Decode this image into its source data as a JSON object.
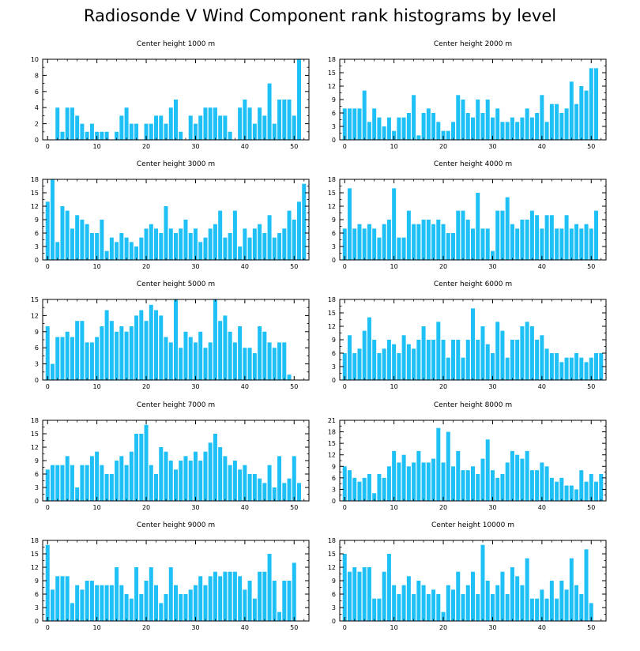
{
  "title": "Radiosonde V Wind Component rank histograms by level",
  "colors": {
    "bar": "#1EC0F5",
    "axis": "#000000"
  },
  "chart_data": [
    {
      "type": "bar",
      "title": "Center height 1000 m",
      "xlim": [
        -1,
        53
      ],
      "ylim": [
        0,
        10
      ],
      "xticks": [
        0,
        10,
        20,
        30,
        40,
        50
      ],
      "yticks": [
        0,
        2,
        4,
        6,
        8,
        10
      ],
      "values": [
        0,
        0,
        4,
        1,
        4,
        4,
        3,
        2,
        1,
        2,
        1,
        1,
        1,
        0,
        1,
        3,
        4,
        2,
        2,
        0,
        2,
        2,
        3,
        3,
        2,
        4,
        5,
        1,
        0,
        3,
        2,
        3,
        4,
        4,
        4,
        3,
        3,
        1,
        0,
        4,
        5,
        4,
        2,
        4,
        3,
        7,
        2,
        5,
        5,
        5,
        3,
        10
      ]
    },
    {
      "type": "bar",
      "title": "Center height 2000 m",
      "xlim": [
        -1,
        53
      ],
      "ylim": [
        0,
        18
      ],
      "xticks": [
        0,
        10,
        20,
        30,
        40,
        50
      ],
      "yticks": [
        0,
        3,
        6,
        9,
        12,
        15,
        18
      ],
      "values": [
        7,
        7,
        7,
        7,
        11,
        4,
        7,
        5,
        3,
        5,
        2,
        5,
        5,
        6,
        10,
        1,
        6,
        7,
        6,
        4,
        2,
        2,
        4,
        10,
        9,
        6,
        5,
        9,
        6,
        9,
        5,
        7,
        4,
        4,
        5,
        4,
        5,
        7,
        5,
        6,
        10,
        4,
        8,
        8,
        6,
        7,
        13,
        8,
        12,
        11,
        16,
        16
      ]
    },
    {
      "type": "bar",
      "title": "Center height 3000 m",
      "xlim": [
        -1,
        53
      ],
      "ylim": [
        0,
        18
      ],
      "xticks": [
        0,
        10,
        20,
        30,
        40,
        50
      ],
      "yticks": [
        0,
        3,
        6,
        9,
        12,
        15,
        18
      ],
      "values": [
        13,
        18,
        4,
        12,
        11,
        7,
        10,
        9,
        8,
        6,
        6,
        9,
        2,
        5,
        4,
        6,
        5,
        4,
        3,
        5,
        7,
        8,
        7,
        6,
        12,
        7,
        6,
        7,
        9,
        6,
        7,
        4,
        5,
        7,
        8,
        11,
        5,
        6,
        11,
        3,
        7,
        5,
        7,
        8,
        6,
        10,
        5,
        6,
        7,
        11,
        9,
        13,
        17
      ]
    },
    {
      "type": "bar",
      "title": "Center height 4000 m",
      "xlim": [
        -1,
        53
      ],
      "ylim": [
        0,
        18
      ],
      "xticks": [
        0,
        10,
        20,
        30,
        40,
        50
      ],
      "yticks": [
        0,
        3,
        6,
        9,
        12,
        15,
        18
      ],
      "values": [
        7,
        16,
        7,
        8,
        7,
        8,
        7,
        5,
        8,
        9,
        16,
        5,
        5,
        11,
        8,
        8,
        9,
        9,
        8,
        9,
        8,
        6,
        6,
        11,
        11,
        9,
        7,
        15,
        7,
        7,
        2,
        11,
        11,
        14,
        8,
        7,
        9,
        9,
        11,
        10,
        7,
        10,
        10,
        7,
        7,
        10,
        7,
        8,
        7,
        8,
        7,
        11
      ]
    },
    {
      "type": "bar",
      "title": "Center height 5000 m",
      "xlim": [
        -1,
        53
      ],
      "ylim": [
        0,
        15
      ],
      "xticks": [
        0,
        10,
        20,
        30,
        40,
        50
      ],
      "yticks": [
        0,
        3,
        6,
        9,
        12,
        15
      ],
      "values": [
        10,
        3,
        8,
        8,
        9,
        8,
        11,
        11,
        7,
        7,
        8,
        10,
        13,
        11,
        9,
        10,
        9,
        10,
        12,
        13,
        11,
        14,
        13,
        12,
        8,
        7,
        15,
        6,
        9,
        8,
        7,
        9,
        6,
        7,
        15,
        11,
        12,
        9,
        7,
        10,
        6,
        6,
        5,
        10,
        9,
        7,
        6,
        7,
        7,
        1
      ]
    },
    {
      "type": "bar",
      "title": "Center height 6000 m",
      "xlim": [
        -1,
        53
      ],
      "ylim": [
        0,
        18
      ],
      "xticks": [
        0,
        10,
        20,
        30,
        40,
        50
      ],
      "yticks": [
        0,
        3,
        6,
        9,
        12,
        15,
        18
      ],
      "values": [
        6,
        10,
        6,
        7,
        11,
        14,
        9,
        6,
        7,
        9,
        8,
        6,
        10,
        8,
        7,
        9,
        12,
        9,
        9,
        13,
        9,
        5,
        9,
        9,
        5,
        9,
        16,
        9,
        12,
        8,
        6,
        13,
        11,
        5,
        9,
        9,
        12,
        13,
        12,
        9,
        10,
        7,
        6,
        6,
        4,
        5,
        5,
        6,
        5,
        4,
        5,
        6,
        6
      ]
    },
    {
      "type": "bar",
      "title": "Center height 7000 m",
      "xlim": [
        -1,
        53
      ],
      "ylim": [
        0,
        18
      ],
      "xticks": [
        0,
        10,
        20,
        30,
        40,
        50
      ],
      "yticks": [
        0,
        3,
        6,
        9,
        12,
        15,
        18
      ],
      "values": [
        7,
        8,
        8,
        8,
        10,
        8,
        3,
        8,
        8,
        10,
        11,
        8,
        6,
        6,
        9,
        10,
        8,
        11,
        15,
        15,
        17,
        8,
        6,
        12,
        11,
        9,
        7,
        9,
        10,
        9,
        11,
        9,
        11,
        13,
        15,
        12,
        10,
        8,
        9,
        7,
        8,
        6,
        6,
        5,
        4,
        8,
        3,
        10,
        4,
        5,
        10,
        4
      ]
    },
    {
      "type": "bar",
      "title": "Center height 8000 m",
      "xlim": [
        -1,
        53
      ],
      "ylim": [
        0,
        21
      ],
      "xticks": [
        0,
        10,
        20,
        30,
        40,
        50
      ],
      "yticks": [
        0,
        3,
        6,
        9,
        12,
        15,
        18,
        21
      ],
      "values": [
        9,
        8,
        6,
        5,
        6,
        7,
        2,
        7,
        6,
        9,
        13,
        10,
        12,
        9,
        10,
        13,
        10,
        10,
        11,
        19,
        10,
        18,
        9,
        13,
        8,
        8,
        9,
        7,
        11,
        16,
        8,
        6,
        7,
        10,
        13,
        12,
        11,
        13,
        8,
        8,
        10,
        9,
        6,
        5,
        6,
        4,
        4,
        3,
        8,
        5,
        7,
        5,
        7
      ]
    },
    {
      "type": "bar",
      "title": "Center height 9000 m",
      "xlim": [
        -1,
        53
      ],
      "ylim": [
        0,
        18
      ],
      "xticks": [
        0,
        10,
        20,
        30,
        40,
        50
      ],
      "yticks": [
        0,
        3,
        6,
        9,
        12,
        15,
        18
      ],
      "values": [
        17,
        7,
        10,
        10,
        10,
        4,
        8,
        7,
        9,
        9,
        8,
        8,
        8,
        8,
        12,
        8,
        6,
        5,
        12,
        6,
        9,
        12,
        8,
        4,
        6,
        12,
        8,
        6,
        6,
        7,
        8,
        10,
        8,
        10,
        11,
        10,
        11,
        11,
        11,
        10,
        7,
        9,
        5,
        11,
        11,
        15,
        9,
        2,
        9,
        9,
        13
      ]
    },
    {
      "type": "bar",
      "title": "Center height 10000 m",
      "xlim": [
        -1,
        53
      ],
      "ylim": [
        0,
        18
      ],
      "xticks": [
        0,
        10,
        20,
        30,
        40,
        50
      ],
      "yticks": [
        0,
        3,
        6,
        9,
        12,
        15,
        18
      ],
      "values": [
        15,
        11,
        12,
        11,
        12,
        12,
        5,
        5,
        11,
        15,
        8,
        6,
        8,
        10,
        6,
        9,
        8,
        6,
        7,
        6,
        2,
        8,
        7,
        11,
        6,
        8,
        11,
        6,
        17,
        9,
        6,
        8,
        11,
        6,
        12,
        10,
        8,
        14,
        5,
        5,
        7,
        5,
        9,
        5,
        9,
        7,
        14,
        8,
        6,
        16,
        4
      ]
    }
  ]
}
